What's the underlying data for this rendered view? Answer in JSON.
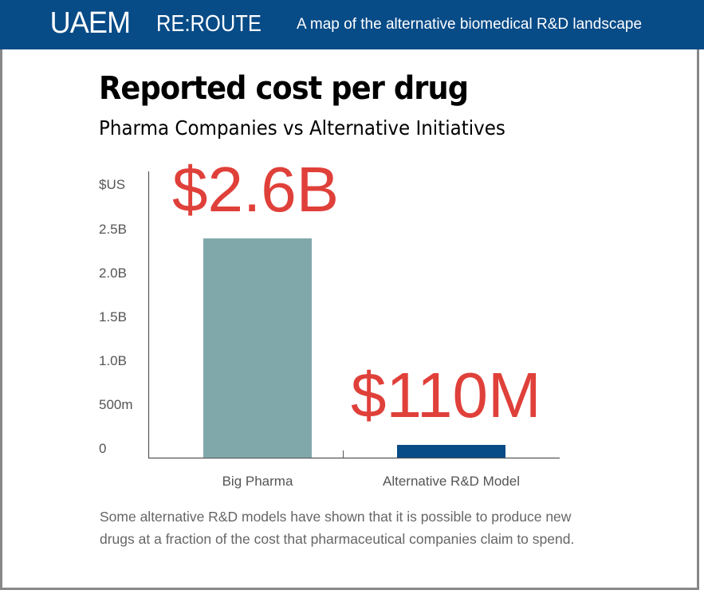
{
  "header": {
    "logo": "UAEM",
    "app_name": "RE:ROUTE",
    "tagline": "A map of the alternative biomedical R&D landscape",
    "color": "#074b87"
  },
  "chart_data": {
    "type": "bar",
    "title": "Reported cost per drug",
    "subtitle": "Pharma Companies vs Alternative Initiatives",
    "ylabel": "$US",
    "yticks": [
      "0",
      "500m",
      "1.0B",
      "1.5B",
      "2.0B",
      "2.5B"
    ],
    "categories": [
      "Big Pharma",
      "Alternative R&D Model"
    ],
    "values": [
      2600000000,
      110000000
    ],
    "data_labels": [
      "$2.6B",
      "$110M"
    ],
    "colors": [
      "#80a8ab",
      "#074b87"
    ],
    "label_color": "#e0403a",
    "grid": false
  },
  "caption": "Some alternative R&D models have shown that it is possible to produce new drugs at a fraction of the cost that pharmaceutical companies claim to spend."
}
